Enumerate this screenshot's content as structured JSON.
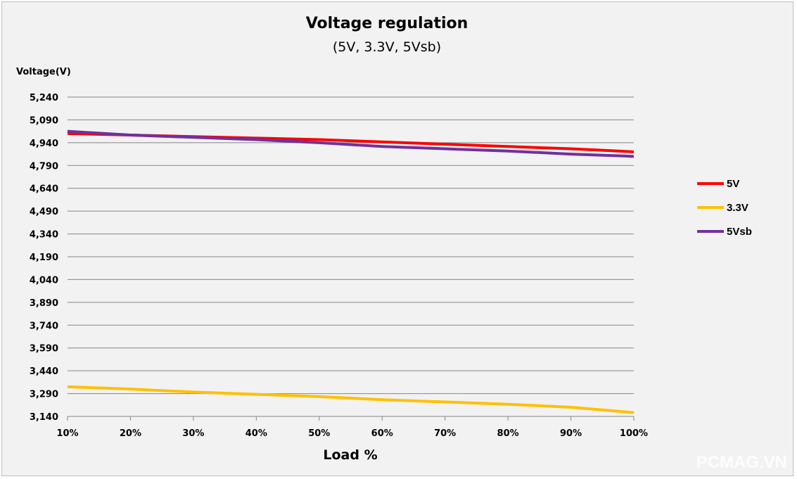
{
  "chart_data": {
    "type": "line",
    "title": "Voltage regulation",
    "subtitle": "(5V, 3.3V, 5Vsb)",
    "xlabel": "Load %",
    "ylabel": "Voltage(V)",
    "categories": [
      "10%",
      "20%",
      "30%",
      "40%",
      "50%",
      "60%",
      "70%",
      "80%",
      "90%",
      "100%"
    ],
    "y_ticks": [
      "3,140",
      "3,290",
      "3,440",
      "3,590",
      "3,740",
      "3,890",
      "4,040",
      "4,190",
      "4,340",
      "4,490",
      "4,640",
      "4,790",
      "4,940",
      "5,090",
      "5,240"
    ],
    "ylim": [
      3.14,
      5.24
    ],
    "grid": true,
    "legend_position": "right",
    "series": [
      {
        "name": "5V",
        "color": "#ff0000",
        "values": [
          5.0,
          4.99,
          4.98,
          4.97,
          4.96,
          4.945,
          4.93,
          4.915,
          4.9,
          4.88
        ]
      },
      {
        "name": "3.3V",
        "color": "#ffc000",
        "values": [
          3.335,
          3.32,
          3.3,
          3.285,
          3.27,
          3.25,
          3.235,
          3.22,
          3.2,
          3.165
        ]
      },
      {
        "name": "5Vsb",
        "color": "#7030a0",
        "values": [
          5.015,
          4.99,
          4.975,
          4.96,
          4.94,
          4.915,
          4.9,
          4.885,
          4.865,
          4.85
        ]
      }
    ]
  },
  "watermark": "PCMAG.VN"
}
